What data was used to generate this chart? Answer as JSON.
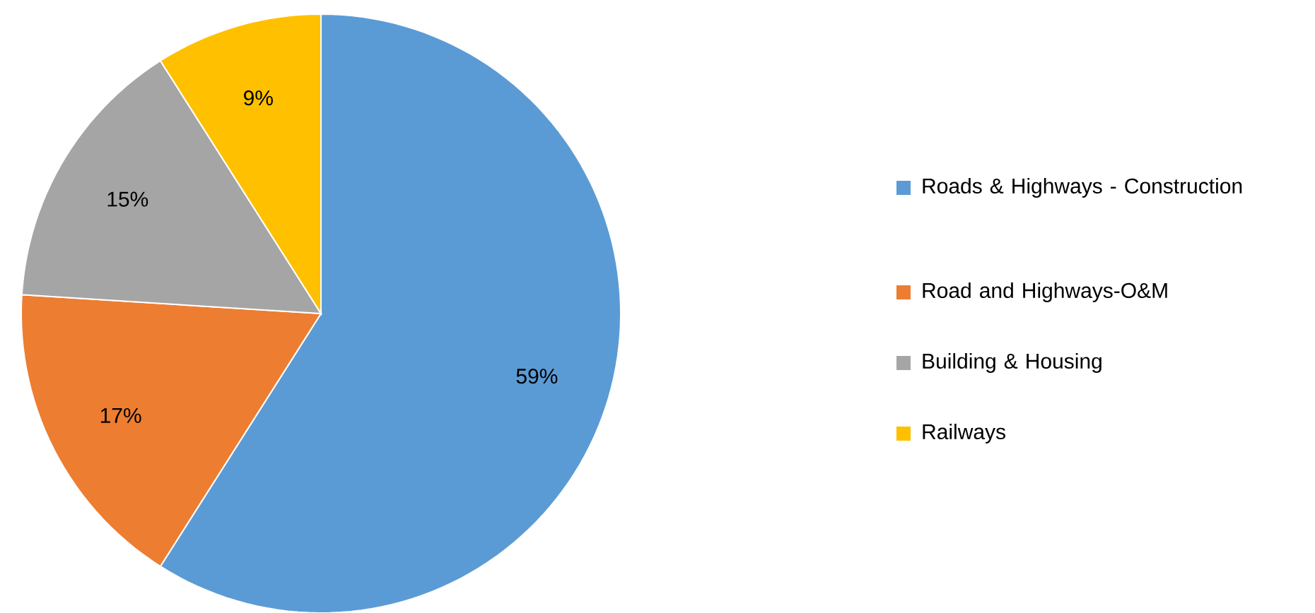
{
  "chart_data": {
    "type": "pie",
    "categories": [
      "Roads & Highways - Construction",
      "Road and Highways-O&M",
      "Building & Housing",
      "Railways"
    ],
    "values": [
      59,
      17,
      15,
      9
    ],
    "value_labels": [
      "59%",
      "17%",
      "15%",
      "9%"
    ],
    "colors": [
      "#5b9bd5",
      "#ed7d31",
      "#a5a5a5",
      "#ffc000"
    ],
    "legend": "right"
  }
}
